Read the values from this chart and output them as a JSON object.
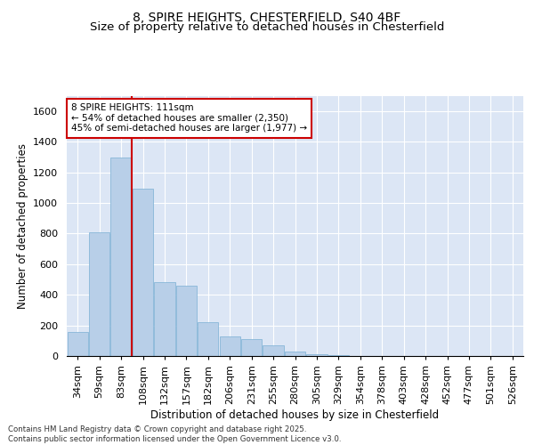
{
  "title_line1": "8, SPIRE HEIGHTS, CHESTERFIELD, S40 4BF",
  "title_line2": "Size of property relative to detached houses in Chesterfield",
  "xlabel": "Distribution of detached houses by size in Chesterfield",
  "ylabel": "Number of detached properties",
  "categories": [
    "34sqm",
    "59sqm",
    "83sqm",
    "108sqm",
    "132sqm",
    "157sqm",
    "182sqm",
    "206sqm",
    "231sqm",
    "255sqm",
    "280sqm",
    "305sqm",
    "329sqm",
    "354sqm",
    "378sqm",
    "403sqm",
    "428sqm",
    "452sqm",
    "477sqm",
    "501sqm",
    "526sqm"
  ],
  "values": [
    155,
    810,
    1295,
    1090,
    480,
    460,
    220,
    130,
    110,
    70,
    30,
    10,
    5,
    0,
    0,
    0,
    0,
    0,
    0,
    0,
    0
  ],
  "bar_color": "#b8cfe8",
  "bar_edge_color": "#7aafd4",
  "background_color": "#dce6f5",
  "grid_color": "#ffffff",
  "vline_x": 3.5,
  "vline_color": "#cc0000",
  "annotation_text": "8 SPIRE HEIGHTS: 111sqm\n← 54% of detached houses are smaller (2,350)\n45% of semi-detached houses are larger (1,977) →",
  "annotation_box_color": "#cc0000",
  "ylim": [
    0,
    1700
  ],
  "yticks": [
    0,
    200,
    400,
    600,
    800,
    1000,
    1200,
    1400,
    1600
  ],
  "footer_text": "Contains HM Land Registry data © Crown copyright and database right 2025.\nContains public sector information licensed under the Open Government Licence v3.0.",
  "title_fontsize": 10,
  "subtitle_fontsize": 9.5,
  "label_fontsize": 8.5,
  "tick_fontsize": 8,
  "annot_fontsize": 7.5
}
